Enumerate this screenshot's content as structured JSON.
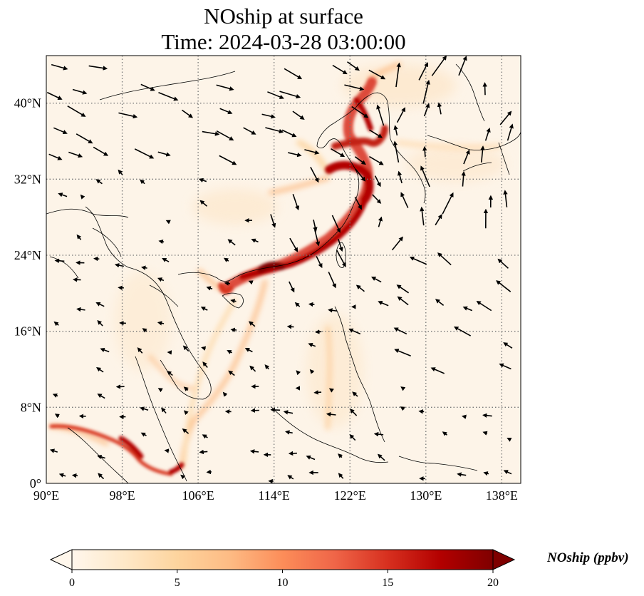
{
  "title": "NOship at surface",
  "subtitle": "Time: 2024-03-28 03:00:00",
  "map": {
    "type": "filled-contour map with wind vectors",
    "region": "East and Southeast Asia",
    "lon_range": [
      90,
      140
    ],
    "lat_range": [
      0,
      45
    ],
    "lon_ticks": [
      "90°E",
      "98°E",
      "106°E",
      "114°E",
      "122°E",
      "130°E",
      "138°E"
    ],
    "lat_ticks": [
      "0°",
      "8°N",
      "16°N",
      "24°N",
      "32°N",
      "40°N"
    ],
    "gridlines": "dotted grey",
    "vectors": "black wind arrows",
    "ship_lanes": [
      {
        "name": "China coast",
        "level": "high"
      },
      {
        "name": "Yellow Sea / Bohai",
        "level": "high"
      },
      {
        "name": "Strait of Malacca",
        "level": "high"
      },
      {
        "name": "South China Sea routes",
        "level": "moderate"
      }
    ]
  },
  "colorbar": {
    "label": "NOship (ppbv)",
    "min": 0,
    "max": 20,
    "ticks": [
      "0",
      "5",
      "10",
      "15",
      "20"
    ],
    "extend": "both",
    "colormap": "OrRd",
    "colors": [
      "#fff7ec",
      "#fee8c8",
      "#fdd49e",
      "#fdbb84",
      "#fc8d59",
      "#ef6548",
      "#d7301f",
      "#b30000",
      "#7f0000"
    ]
  }
}
